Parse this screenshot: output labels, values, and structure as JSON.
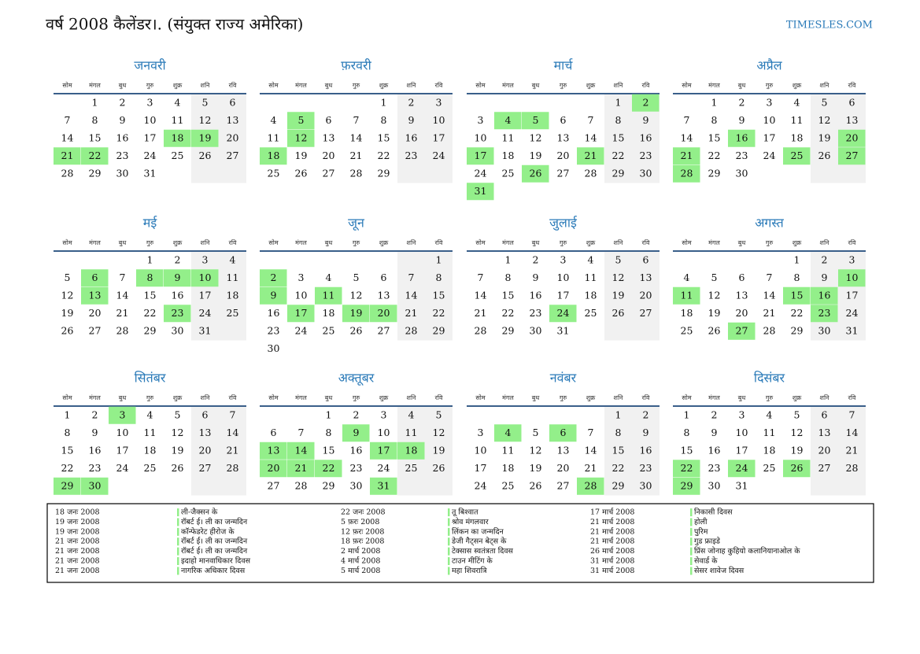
{
  "header": {
    "title": "वर्ष 2008 कैलेंडर।. (संयुक्त राज्य अमेरिका)",
    "site": "TIMESLES.COM"
  },
  "weekdays": [
    "सोम",
    "मंगल",
    "बुध",
    "गुरु",
    "शुक्र",
    "शनि",
    "रवि"
  ],
  "holiday_color": "#93ef8a",
  "weekend_color": "#f1f1f1",
  "months": [
    {
      "name": "जनवरी",
      "weeks": [
        [
          null,
          1,
          2,
          3,
          4,
          5,
          6
        ],
        [
          7,
          8,
          9,
          10,
          11,
          12,
          13
        ],
        [
          14,
          15,
          16,
          17,
          18,
          19,
          20
        ],
        [
          21,
          22,
          23,
          24,
          25,
          26,
          27
        ],
        [
          28,
          29,
          30,
          31
        ]
      ],
      "holidays": [
        18,
        19,
        21,
        22
      ]
    },
    {
      "name": "फ़रवरी",
      "weeks": [
        [
          null,
          null,
          null,
          null,
          1,
          2,
          3
        ],
        [
          4,
          5,
          6,
          7,
          8,
          9,
          10
        ],
        [
          11,
          12,
          13,
          14,
          15,
          16,
          17
        ],
        [
          18,
          19,
          20,
          21,
          22,
          23,
          24
        ],
        [
          25,
          26,
          27,
          28,
          29
        ]
      ],
      "holidays": [
        5,
        12,
        18
      ]
    },
    {
      "name": "मार्च",
      "weeks": [
        [
          null,
          null,
          null,
          null,
          null,
          1,
          2
        ],
        [
          3,
          4,
          5,
          6,
          7,
          8,
          9
        ],
        [
          10,
          11,
          12,
          13,
          14,
          15,
          16
        ],
        [
          17,
          18,
          19,
          20,
          21,
          22,
          23
        ],
        [
          24,
          25,
          26,
          27,
          28,
          29,
          30
        ],
        [
          31
        ]
      ],
      "holidays": [
        2,
        4,
        5,
        17,
        21,
        26,
        31
      ]
    },
    {
      "name": "अप्रैल",
      "weeks": [
        [
          null,
          1,
          2,
          3,
          4,
          5,
          6
        ],
        [
          7,
          8,
          9,
          10,
          11,
          12,
          13
        ],
        [
          14,
          15,
          16,
          17,
          18,
          19,
          20
        ],
        [
          21,
          22,
          23,
          24,
          25,
          26,
          27
        ],
        [
          28,
          29,
          30
        ]
      ],
      "holidays": [
        16,
        20,
        21,
        25,
        27,
        28
      ]
    },
    {
      "name": "मई",
      "weeks": [
        [
          null,
          null,
          null,
          1,
          2,
          3,
          4
        ],
        [
          5,
          6,
          7,
          8,
          9,
          10,
          11
        ],
        [
          12,
          13,
          14,
          15,
          16,
          17,
          18
        ],
        [
          19,
          20,
          21,
          22,
          23,
          24,
          25
        ],
        [
          26,
          27,
          28,
          29,
          30,
          31
        ]
      ],
      "holidays": [
        6,
        8,
        9,
        10,
        13,
        23
      ]
    },
    {
      "name": "जून",
      "weeks": [
        [
          null,
          null,
          null,
          null,
          null,
          null,
          1
        ],
        [
          2,
          3,
          4,
          5,
          6,
          7,
          8
        ],
        [
          9,
          10,
          11,
          12,
          13,
          14,
          15
        ],
        [
          16,
          17,
          18,
          19,
          20,
          21,
          22
        ],
        [
          23,
          24,
          25,
          26,
          27,
          28,
          29
        ],
        [
          30
        ]
      ],
      "holidays": [
        2,
        9,
        11,
        17,
        19,
        20
      ]
    },
    {
      "name": "जुलाई",
      "weeks": [
        [
          null,
          1,
          2,
          3,
          4,
          5,
          6
        ],
        [
          7,
          8,
          9,
          10,
          11,
          12,
          13
        ],
        [
          14,
          15,
          16,
          17,
          18,
          19,
          20
        ],
        [
          21,
          22,
          23,
          24,
          25,
          26,
          27
        ],
        [
          28,
          29,
          30,
          31
        ]
      ],
      "holidays": [
        24
      ]
    },
    {
      "name": "अगस्त",
      "weeks": [
        [
          null,
          null,
          null,
          null,
          1,
          2,
          3
        ],
        [
          4,
          5,
          6,
          7,
          8,
          9,
          10
        ],
        [
          11,
          12,
          13,
          14,
          15,
          16,
          17
        ],
        [
          18,
          19,
          20,
          21,
          22,
          23,
          24
        ],
        [
          25,
          26,
          27,
          28,
          29,
          30,
          31
        ]
      ],
      "holidays": [
        10,
        11,
        15,
        16,
        23,
        27
      ]
    },
    {
      "name": "सितंबर",
      "weeks": [
        [
          1,
          2,
          3,
          4,
          5,
          6,
          7
        ],
        [
          8,
          9,
          10,
          11,
          12,
          13,
          14
        ],
        [
          15,
          16,
          17,
          18,
          19,
          20,
          21
        ],
        [
          22,
          23,
          24,
          25,
          26,
          27,
          28
        ],
        [
          29,
          30
        ]
      ],
      "holidays": [
        3,
        29,
        30
      ]
    },
    {
      "name": "अक्तूबर",
      "weeks": [
        [
          null,
          null,
          1,
          2,
          3,
          4,
          5
        ],
        [
          6,
          7,
          8,
          9,
          10,
          11,
          12
        ],
        [
          13,
          14,
          15,
          16,
          17,
          18,
          19
        ],
        [
          20,
          21,
          22,
          23,
          24,
          25,
          26
        ],
        [
          27,
          28,
          29,
          30,
          31
        ]
      ],
      "holidays": [
        9,
        13,
        14,
        17,
        18,
        20,
        21,
        22,
        31
      ]
    },
    {
      "name": "नवंबर",
      "weeks": [
        [
          null,
          null,
          null,
          null,
          null,
          1,
          2
        ],
        [
          3,
          4,
          5,
          6,
          7,
          8,
          9
        ],
        [
          10,
          11,
          12,
          13,
          14,
          15,
          16
        ],
        [
          17,
          18,
          19,
          20,
          21,
          22,
          23
        ],
        [
          24,
          25,
          26,
          27,
          28,
          29,
          30
        ]
      ],
      "holidays": [
        4,
        6,
        28
      ]
    },
    {
      "name": "दिसंबर",
      "weeks": [
        [
          1,
          2,
          3,
          4,
          5,
          6,
          7
        ],
        [
          8,
          9,
          10,
          11,
          12,
          13,
          14
        ],
        [
          15,
          16,
          17,
          18,
          19,
          20,
          21
        ],
        [
          22,
          23,
          24,
          25,
          26,
          27,
          28
        ],
        [
          29,
          30,
          31
        ]
      ],
      "holidays": [
        22,
        24,
        26,
        29
      ]
    }
  ],
  "holiday_list": [
    {
      "date": "18 जनः 2008",
      "name": "ली-जैक्सन के"
    },
    {
      "date": "19 जनः 2008",
      "name": "रॉबर्ट ई। ली का जन्मदिन"
    },
    {
      "date": "19 जनः 2008",
      "name": "कॉन्फेडरेट हीरोज के"
    },
    {
      "date": "21 जनः 2008",
      "name": "रॉबर्ट ई। ली का जन्मदिन"
    },
    {
      "date": "21 जनः 2008",
      "name": "रॉबर्ट ई। ली का जन्मदिन"
    },
    {
      "date": "21 जनः 2008",
      "name": "इदाहो मानवाधिकार दिवस"
    },
    {
      "date": "21 जनः 2008",
      "name": "नागरिक अधिकार दिवस"
    },
    {
      "date": "22 जनः 2008",
      "name": "तू बिश्वात"
    },
    {
      "date": "5 फ़रः 2008",
      "name": "श्रोव मंगलवार"
    },
    {
      "date": "12 फ़रः 2008",
      "name": "लिंकन का जन्मदिन"
    },
    {
      "date": "18 फ़रः 2008",
      "name": "डेजी गैट्सन बेट्स के"
    },
    {
      "date": "2 मार्च 2008",
      "name": "टेक्सास स्वतंत्रता दिवस"
    },
    {
      "date": "4 मार्च 2008",
      "name": "टाउन मीटिंग के"
    },
    {
      "date": "5 मार्च 2008",
      "name": "महा शिवरात्रि"
    },
    {
      "date": "17 मार्च 2008",
      "name": "निकासी दिवस"
    },
    {
      "date": "21 मार्च 2008",
      "name": "होली"
    },
    {
      "date": "21 मार्च 2008",
      "name": "पुरिम"
    },
    {
      "date": "21 मार्च 2008",
      "name": "गुड फ्राइडे"
    },
    {
      "date": "26 मार्च 2008",
      "name": "प्रिंस जोनाह कुहियो कलानियानाओल के"
    },
    {
      "date": "31 मार्च 2008",
      "name": "सेवार्ड के"
    },
    {
      "date": "31 मार्च 2008",
      "name": "सेसर शावेज दिवस"
    }
  ]
}
